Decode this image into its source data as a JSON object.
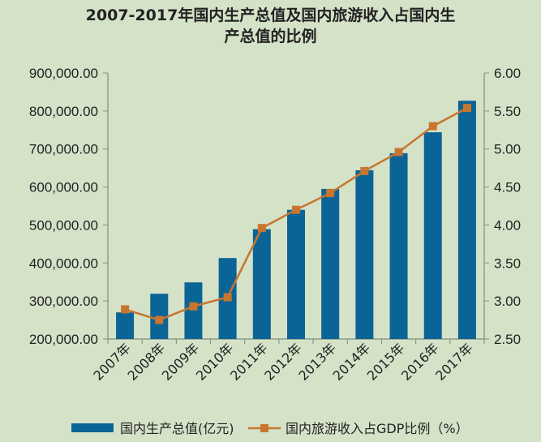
{
  "chart_data": {
    "type": "bar+line",
    "title_line1": "2007-2017年国内生产总值及国内旅游收入占国内生",
    "title_line2": "产总值的比例",
    "categories": [
      "2007年",
      "2008年",
      "2009年",
      "2010年",
      "2011年",
      "2012年",
      "2013年",
      "2014年",
      "2015年",
      "2016年",
      "2017年"
    ],
    "series": [
      {
        "name": "国内生产总值(亿元)",
        "type": "bar",
        "axis": "left",
        "color": "#0b6496",
        "values": [
          270000,
          319000,
          349000,
          413000,
          489000,
          540000,
          595000,
          644000,
          689000,
          744000,
          827000
        ]
      },
      {
        "name": "国内旅游收入占GDP比例（%）",
        "type": "line",
        "axis": "right",
        "color": "#c8752e",
        "values": [
          2.89,
          2.75,
          2.93,
          3.05,
          3.96,
          4.2,
          4.42,
          4.71,
          4.96,
          5.3,
          5.54
        ]
      }
    ],
    "left_axis": {
      "min": 200000,
      "max": 900000,
      "step": 100000,
      "tick_labels": [
        "200,000.00",
        "300,000.00",
        "400,000.00",
        "500,000.00",
        "600,000.00",
        "700,000.00",
        "800,000.00",
        "900,000.00"
      ]
    },
    "right_axis": {
      "min": 2.5,
      "max": 6.0,
      "step": 0.5,
      "tick_labels": [
        "2.50",
        "3.00",
        "3.50",
        "4.00",
        "4.50",
        "5.00",
        "5.50",
        "6.00"
      ]
    },
    "legend_position": "bottom",
    "grid": false
  }
}
